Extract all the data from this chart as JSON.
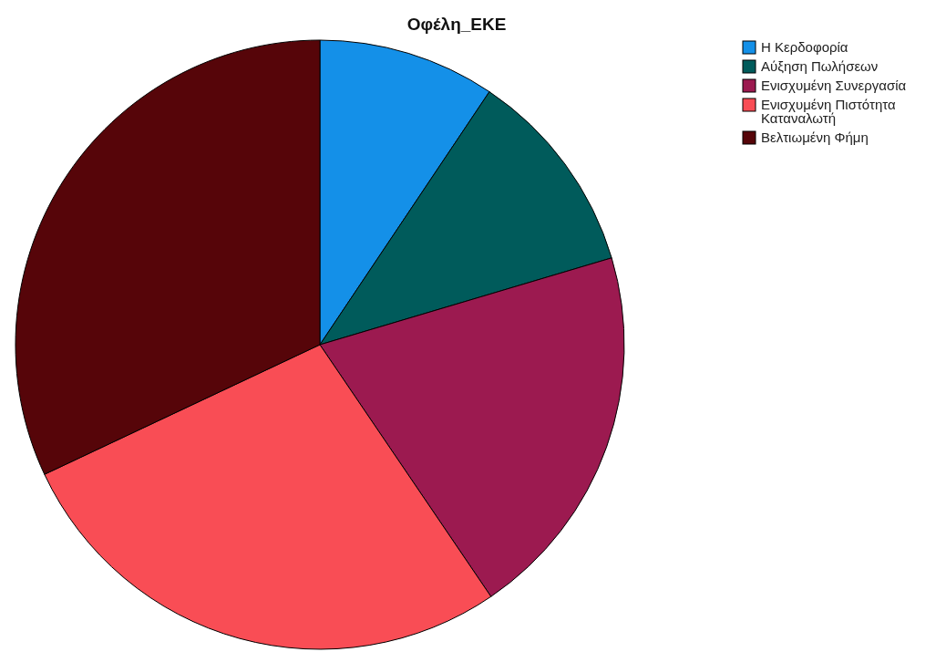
{
  "chart_data": {
    "type": "pie",
    "title": "Οφέλη_ΕΚΕ",
    "categories": [
      "Η Κερδοφορία",
      "Αύξηση Πωλήσεων",
      "Ενισχυμένη Συνεργασία",
      "Ενισχυμένη Πιστότητα Καταναλωτή",
      "Βελτιωμένη Φήμη"
    ],
    "values": [
      9.4,
      11.0,
      20.1,
      27.5,
      32.0
    ],
    "colors": [
      "#1490e8",
      "#005b5b",
      "#9c1a50",
      "#f94d55",
      "#560509"
    ],
    "legend": "top right"
  }
}
